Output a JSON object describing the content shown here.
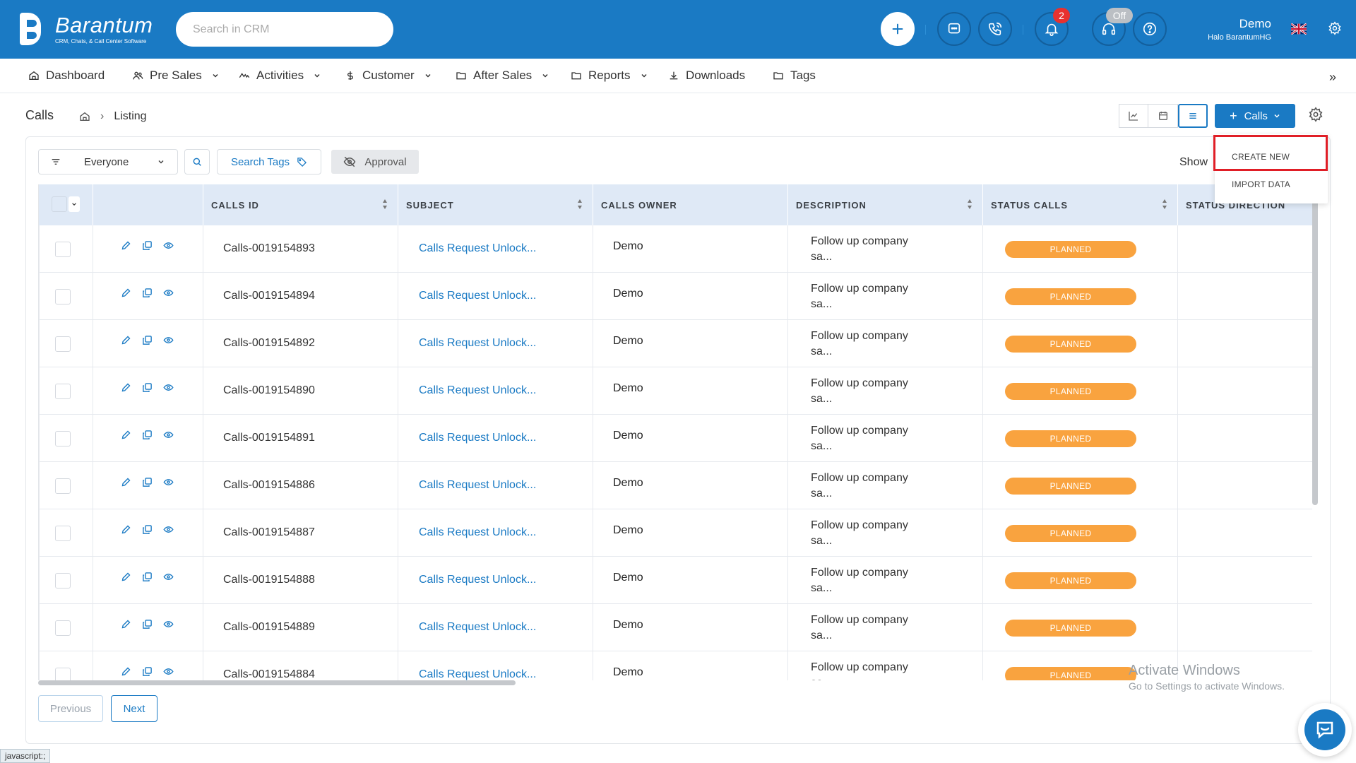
{
  "header": {
    "logo_title": "Barantum",
    "logo_subtitle": "CRM, Chats, & Call Center Software",
    "search_placeholder": "Search in CRM",
    "notification_count": "2",
    "status_badge": "Off",
    "user_name": "Demo",
    "user_company": "Halo BarantumHG",
    "colors": {
      "primary": "#1a7ac4",
      "badge": "#e8312f"
    }
  },
  "nav": {
    "items": [
      {
        "label": "Dashboard",
        "icon": "home-icon"
      },
      {
        "label": "Pre Sales",
        "icon": "users-icon"
      },
      {
        "label": "Activities",
        "icon": "activity-icon"
      },
      {
        "label": "Customer",
        "icon": "dollar-icon"
      },
      {
        "label": "After Sales",
        "icon": "folder-icon"
      },
      {
        "label": "Reports",
        "icon": "folder-icon"
      },
      {
        "label": "Downloads",
        "icon": "download-icon"
      },
      {
        "label": "Tags",
        "icon": "folder-icon"
      }
    ],
    "expand": "»"
  },
  "page": {
    "title": "Calls",
    "breadcrumb_sep": "›",
    "breadcrumb_current": "Listing",
    "calls_button": "Calls"
  },
  "dropdown": {
    "create_new": "CREATE NEW",
    "import_data": "IMPORT DATA"
  },
  "filters": {
    "owner_filter": "Everyone",
    "search_tags": "Search Tags",
    "approval": "Approval",
    "show_label": "Show"
  },
  "table": {
    "columns": [
      "CALLS ID",
      "SUBJECT",
      "CALLS OWNER",
      "DESCRIPTION",
      "STATUS CALLS",
      "STATUS DIRECTION"
    ],
    "rows": [
      {
        "id": "Calls-0019154893",
        "subject": "Calls Request Unlock...",
        "owner": "Demo",
        "desc1": "Follow up company",
        "desc2": "sa...",
        "status": "PLANNED"
      },
      {
        "id": "Calls-0019154894",
        "subject": "Calls Request Unlock...",
        "owner": "Demo",
        "desc1": "Follow up company",
        "desc2": "sa...",
        "status": "PLANNED"
      },
      {
        "id": "Calls-0019154892",
        "subject": "Calls Request Unlock...",
        "owner": "Demo",
        "desc1": "Follow up company",
        "desc2": "sa...",
        "status": "PLANNED"
      },
      {
        "id": "Calls-0019154890",
        "subject": "Calls Request Unlock...",
        "owner": "Demo",
        "desc1": "Follow up company",
        "desc2": "sa...",
        "status": "PLANNED"
      },
      {
        "id": "Calls-0019154891",
        "subject": "Calls Request Unlock...",
        "owner": "Demo",
        "desc1": "Follow up company",
        "desc2": "sa...",
        "status": "PLANNED"
      },
      {
        "id": "Calls-0019154886",
        "subject": "Calls Request Unlock...",
        "owner": "Demo",
        "desc1": "Follow up company",
        "desc2": "sa...",
        "status": "PLANNED"
      },
      {
        "id": "Calls-0019154887",
        "subject": "Calls Request Unlock...",
        "owner": "Demo",
        "desc1": "Follow up company",
        "desc2": "sa...",
        "status": "PLANNED"
      },
      {
        "id": "Calls-0019154888",
        "subject": "Calls Request Unlock...",
        "owner": "Demo",
        "desc1": "Follow up company",
        "desc2": "sa...",
        "status": "PLANNED"
      },
      {
        "id": "Calls-0019154889",
        "subject": "Calls Request Unlock...",
        "owner": "Demo",
        "desc1": "Follow up company",
        "desc2": "sa...",
        "status": "PLANNED"
      },
      {
        "id": "Calls-0019154884",
        "subject": "Calls Request Unlock...",
        "owner": "Demo",
        "desc1": "Follow up company",
        "desc2": "sa...",
        "status": "PLANNED"
      }
    ]
  },
  "pagination": {
    "previous": "Previous",
    "next": "Next"
  },
  "watermark": {
    "title": "Activate Windows",
    "subtitle": "Go to Settings to activate Windows."
  },
  "statusbar": "javascript:;"
}
